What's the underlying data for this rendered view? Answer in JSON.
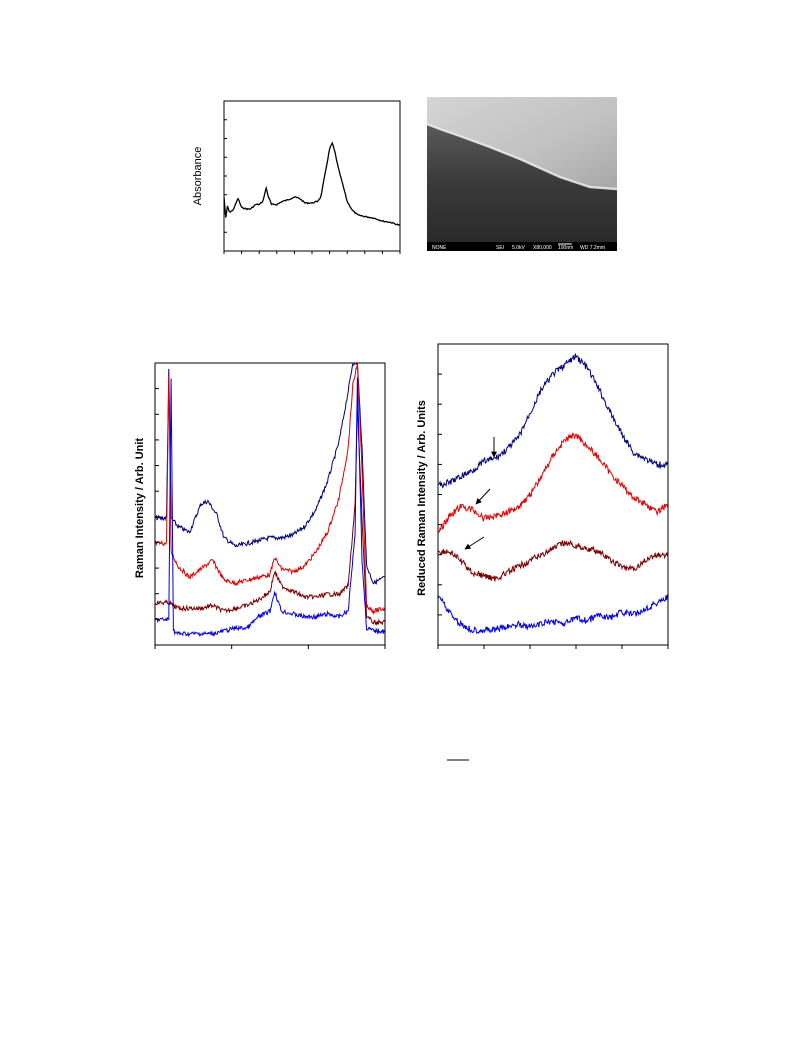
{
  "chart_data": [
    {
      "type": "line",
      "ylabel": "Absorbance",
      "xlabel": "",
      "xlim": [
        0,
        10
      ],
      "ylim": [
        0,
        1
      ],
      "series": [
        {
          "color": "#000000",
          "x": [
            0.0,
            0.1,
            0.2,
            0.3,
            0.5,
            0.8,
            1.0,
            1.3,
            1.5,
            1.8,
            2.0,
            2.2,
            2.4,
            2.5,
            2.7,
            3.0,
            3.3,
            3.6,
            4.0,
            4.3,
            4.6,
            5.0,
            5.3,
            5.5,
            5.8,
            6.0,
            6.15,
            6.3,
            6.5,
            6.8,
            7.0,
            7.3,
            7.6,
            8.0,
            8.5,
            9.0,
            9.5,
            10.0
          ],
          "y": [
            0.36,
            0.22,
            0.3,
            0.26,
            0.27,
            0.35,
            0.29,
            0.28,
            0.28,
            0.31,
            0.31,
            0.33,
            0.42,
            0.37,
            0.31,
            0.31,
            0.33,
            0.34,
            0.36,
            0.35,
            0.32,
            0.32,
            0.33,
            0.36,
            0.55,
            0.68,
            0.72,
            0.66,
            0.55,
            0.42,
            0.33,
            0.27,
            0.24,
            0.23,
            0.22,
            0.2,
            0.19,
            0.17
          ]
        }
      ]
    },
    {
      "type": "line",
      "ylabel": "Raman Intensity / Arb. Unit",
      "xlabel": "",
      "xlim": [
        0,
        1
      ],
      "ylim": [
        0,
        1
      ],
      "series": [
        {
          "color": "#00007a",
          "x": [
            0.0,
            0.05,
            0.06,
            0.07,
            0.1,
            0.15,
            0.2,
            0.23,
            0.27,
            0.3,
            0.35,
            0.4,
            0.45,
            0.5,
            0.55,
            0.6,
            0.65,
            0.7,
            0.75,
            0.8,
            0.84,
            0.86,
            0.88,
            0.9,
            0.92,
            0.95,
            1.0
          ],
          "y": [
            0.45,
            0.45,
            0.98,
            0.45,
            0.42,
            0.4,
            0.5,
            0.51,
            0.46,
            0.38,
            0.35,
            0.36,
            0.37,
            0.38,
            0.38,
            0.39,
            0.42,
            0.48,
            0.58,
            0.72,
            0.9,
            1.0,
            1.0,
            0.7,
            0.28,
            0.22,
            0.24
          ]
        },
        {
          "color": "#e00000",
          "x": [
            0.0,
            0.05,
            0.06,
            0.07,
            0.1,
            0.15,
            0.2,
            0.25,
            0.3,
            0.35,
            0.4,
            0.45,
            0.5,
            0.52,
            0.55,
            0.6,
            0.65,
            0.7,
            0.75,
            0.8,
            0.84,
            0.86,
            0.88,
            0.9,
            0.92,
            0.95,
            1.0
          ],
          "y": [
            0.36,
            0.36,
            0.95,
            0.33,
            0.28,
            0.24,
            0.27,
            0.3,
            0.23,
            0.22,
            0.23,
            0.24,
            0.25,
            0.31,
            0.27,
            0.26,
            0.28,
            0.33,
            0.4,
            0.52,
            0.7,
            0.92,
            1.0,
            0.62,
            0.14,
            0.12,
            0.13
          ]
        },
        {
          "color": "#7a0000",
          "x": [
            0.0,
            0.06,
            0.1,
            0.15,
            0.2,
            0.25,
            0.3,
            0.35,
            0.4,
            0.45,
            0.5,
            0.52,
            0.55,
            0.6,
            0.65,
            0.7,
            0.75,
            0.8,
            0.84,
            0.87,
            0.88,
            0.9,
            0.92,
            0.95,
            1.0
          ],
          "y": [
            0.15,
            0.15,
            0.13,
            0.13,
            0.13,
            0.14,
            0.12,
            0.13,
            0.14,
            0.16,
            0.19,
            0.26,
            0.21,
            0.19,
            0.17,
            0.17,
            0.18,
            0.18,
            0.21,
            0.5,
            0.85,
            0.45,
            0.1,
            0.08,
            0.08
          ]
        },
        {
          "color": "#0000e0",
          "x": [
            0.0,
            0.06,
            0.07,
            0.08,
            0.1,
            0.15,
            0.2,
            0.25,
            0.3,
            0.35,
            0.4,
            0.45,
            0.5,
            0.52,
            0.55,
            0.6,
            0.65,
            0.7,
            0.75,
            0.8,
            0.84,
            0.87,
            0.88,
            0.9,
            0.92,
            0.95,
            1.0
          ],
          "y": [
            0.09,
            0.09,
            0.95,
            0.05,
            0.04,
            0.04,
            0.04,
            0.04,
            0.05,
            0.06,
            0.06,
            0.1,
            0.12,
            0.19,
            0.12,
            0.11,
            0.1,
            0.1,
            0.11,
            0.1,
            0.12,
            0.4,
            0.95,
            0.3,
            0.06,
            0.05,
            0.05
          ]
        }
      ]
    },
    {
      "type": "line",
      "ylabel": "Reduced Raman Intensity / Arb. Units",
      "xlabel": "",
      "xlim": [
        0,
        1
      ],
      "ylim": [
        0,
        1
      ],
      "series": [
        {
          "color": "#00007a",
          "x": [
            0.0,
            0.05,
            0.1,
            0.15,
            0.2,
            0.25,
            0.3,
            0.35,
            0.4,
            0.45,
            0.5,
            0.55,
            0.6,
            0.65,
            0.7,
            0.75,
            0.8,
            0.85,
            0.9,
            0.95,
            1.0
          ],
          "y": [
            0.53,
            0.54,
            0.56,
            0.58,
            0.61,
            0.62,
            0.65,
            0.69,
            0.77,
            0.85,
            0.9,
            0.93,
            0.96,
            0.92,
            0.85,
            0.77,
            0.7,
            0.64,
            0.62,
            0.6,
            0.6
          ]
        },
        {
          "color": "#e00000",
          "x": [
            0.0,
            0.05,
            0.1,
            0.15,
            0.2,
            0.25,
            0.3,
            0.35,
            0.4,
            0.45,
            0.5,
            0.55,
            0.6,
            0.65,
            0.7,
            0.75,
            0.8,
            0.85,
            0.9,
            0.95,
            1.0
          ],
          "y": [
            0.37,
            0.43,
            0.46,
            0.45,
            0.42,
            0.43,
            0.44,
            0.46,
            0.5,
            0.56,
            0.63,
            0.68,
            0.7,
            0.66,
            0.62,
            0.57,
            0.53,
            0.49,
            0.47,
            0.44,
            0.47
          ]
        },
        {
          "color": "#7a0000",
          "x": [
            0.0,
            0.05,
            0.1,
            0.15,
            0.2,
            0.25,
            0.3,
            0.35,
            0.4,
            0.45,
            0.5,
            0.55,
            0.6,
            0.65,
            0.7,
            0.75,
            0.8,
            0.85,
            0.9,
            0.95,
            1.0
          ],
          "y": [
            0.31,
            0.31,
            0.28,
            0.24,
            0.23,
            0.22,
            0.24,
            0.26,
            0.28,
            0.3,
            0.32,
            0.34,
            0.33,
            0.32,
            0.31,
            0.28,
            0.26,
            0.25,
            0.28,
            0.3,
            0.3
          ]
        },
        {
          "color": "#0000e0",
          "x": [
            0.0,
            0.04,
            0.08,
            0.12,
            0.15,
            0.2,
            0.25,
            0.3,
            0.35,
            0.4,
            0.45,
            0.5,
            0.55,
            0.6,
            0.65,
            0.7,
            0.75,
            0.8,
            0.85,
            0.9,
            0.95,
            1.0
          ],
          "y": [
            0.17,
            0.12,
            0.08,
            0.06,
            0.05,
            0.05,
            0.05,
            0.06,
            0.07,
            0.06,
            0.07,
            0.08,
            0.07,
            0.09,
            0.08,
            0.1,
            0.09,
            0.11,
            0.1,
            0.12,
            0.14,
            0.16
          ]
        }
      ]
    }
  ],
  "sem_image": {
    "info_bar": [
      "NONE",
      "SEI",
      "5.0kV",
      "X80,000",
      "100nm",
      "WD 7.2mm"
    ]
  }
}
